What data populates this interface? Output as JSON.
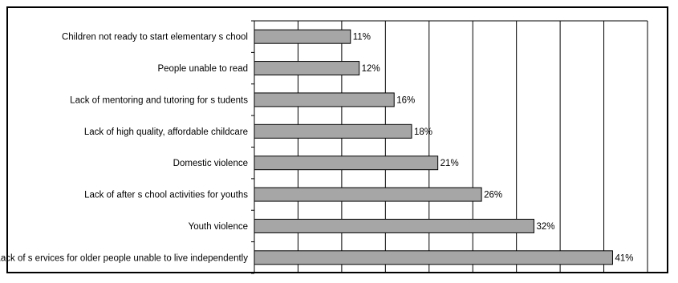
{
  "chart_data": {
    "type": "bar",
    "orientation": "horizontal",
    "categories": [
      "Children not ready to start elementary s chool",
      "People unable to read",
      "Lack of mentoring and tutoring for s tudents",
      "Lack of high quality, affordable childcare",
      "Domestic violence",
      "Lack of after s chool activities for youths",
      "Youth violence",
      "Lack of s ervices for older people unable to live independently"
    ],
    "values": [
      11,
      12,
      16,
      18,
      21,
      26,
      32,
      41
    ],
    "value_labels": [
      "11%",
      "12%",
      "16%",
      "18%",
      "21%",
      "26%",
      "32%",
      "41%"
    ],
    "xlim": [
      0,
      45
    ],
    "grid": true,
    "colors": {
      "bar": "#a6a6a6",
      "bar_stroke": "#000000",
      "grid": "#000000"
    }
  }
}
